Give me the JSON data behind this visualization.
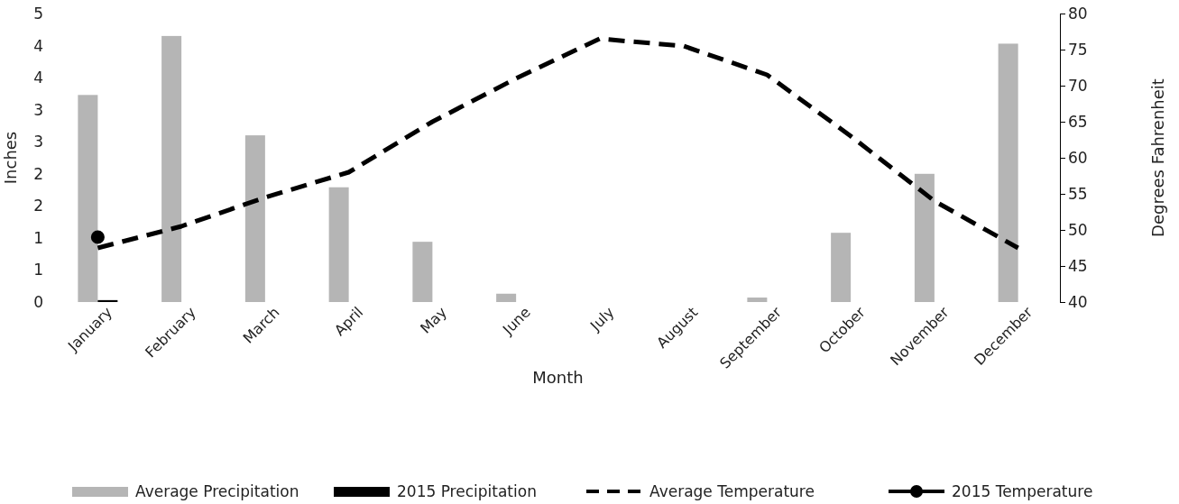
{
  "chart_data": {
    "type": "bar",
    "xlabel": "Month",
    "ylabel": "Inches",
    "y2label": "Degrees Fahrenheit",
    "categories": [
      "January",
      "February",
      "March",
      "April",
      "May",
      "June",
      "July",
      "August",
      "September",
      "October",
      "November",
      "December"
    ],
    "series": [
      {
        "name": "Average Precipitation",
        "color": "#b5b5b5",
        "values": [
          3.23,
          4.15,
          2.6,
          1.79,
          0.94,
          0.13,
          0,
          0,
          0.07,
          1.08,
          2.0,
          4.03
        ]
      },
      {
        "name": "2015 Precipitation",
        "color": "#000000",
        "values": [
          0.03,
          null,
          null,
          null,
          null,
          null,
          null,
          null,
          null,
          null,
          null,
          null
        ]
      },
      {
        "name": "Average Temperature",
        "type": "line",
        "axis": "y2",
        "color": "#000000",
        "line_style": "dashed",
        "marker": "none",
        "values": [
          47.5,
          50.5,
          54.5,
          58,
          65,
          71,
          76.5,
          75.5,
          71.5,
          63,
          54,
          47.5
        ]
      },
      {
        "name": "2015 Temperature",
        "type": "line",
        "axis": "y2",
        "color": "#000000",
        "line_style": "solid",
        "marker": "circle",
        "values": [
          49,
          null,
          null,
          null,
          null,
          null,
          null,
          null,
          null,
          null,
          null,
          null
        ]
      }
    ],
    "ylim": [
      0,
      4.5
    ],
    "yticks": [
      0,
      {
        "value": 0.5,
        "label": "1"
      },
      1,
      {
        "value": 1.5,
        "label": "2"
      },
      2,
      {
        "value": 2.5,
        "label": "3"
      },
      3,
      {
        "value": 3.5,
        "label": "4"
      },
      4,
      {
        "value": 4.5,
        "label": "5"
      }
    ],
    "y2lim": [
      40,
      80
    ],
    "y2ticks": [
      40,
      45,
      50,
      55,
      60,
      65,
      70,
      75,
      80
    ],
    "grid": false,
    "legend": "bottom"
  }
}
